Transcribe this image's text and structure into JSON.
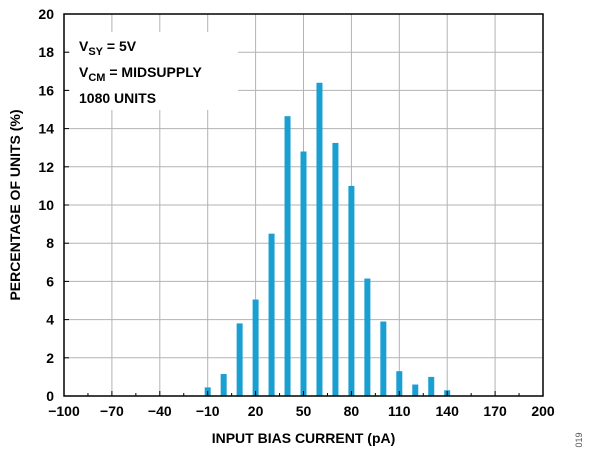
{
  "chart_data": {
    "type": "bar",
    "xlabel": "INPUT BIAS CURRENT (pA)",
    "ylabel": "PERCENTAGE OF UNITS (%)",
    "xlim": [
      -100,
      200
    ],
    "ylim": [
      0,
      20
    ],
    "x_ticks": [
      -100,
      -70,
      -40,
      -10,
      20,
      50,
      80,
      110,
      140,
      170,
      200
    ],
    "x_tick_labels": [
      "−100",
      "−70",
      "−40",
      "−10",
      "20",
      "50",
      "80",
      "110",
      "140",
      "170",
      "200"
    ],
    "y_ticks": [
      0,
      2,
      4,
      6,
      8,
      10,
      12,
      14,
      16,
      18,
      20
    ],
    "y_tick_labels": [
      "0",
      "2",
      "4",
      "6",
      "8",
      "10",
      "12",
      "14",
      "16",
      "18",
      "20"
    ],
    "x_minor_ticks": [
      -85,
      -55,
      -25,
      5,
      35,
      65,
      95,
      125,
      155,
      185
    ],
    "grid": true,
    "bar_color": "#1a9fd2",
    "x": [
      -10,
      0,
      10,
      20,
      30,
      40,
      50,
      60,
      70,
      80,
      90,
      100,
      110,
      120,
      130,
      140
    ],
    "values": [
      0.45,
      1.15,
      3.8,
      5.05,
      8.5,
      14.65,
      12.8,
      16.4,
      13.25,
      11.0,
      6.15,
      3.9,
      1.3,
      0.6,
      1.0,
      0.3
    ],
    "annotations": [
      {
        "main": "V",
        "sub": "SY",
        "rest": " = 5V"
      },
      {
        "main": "V",
        "sub": "CM",
        "rest": " = MIDSUPPLY"
      },
      {
        "main": "1080 UNITS",
        "sub": "",
        "rest": ""
      }
    ],
    "figure_id": "019"
  }
}
